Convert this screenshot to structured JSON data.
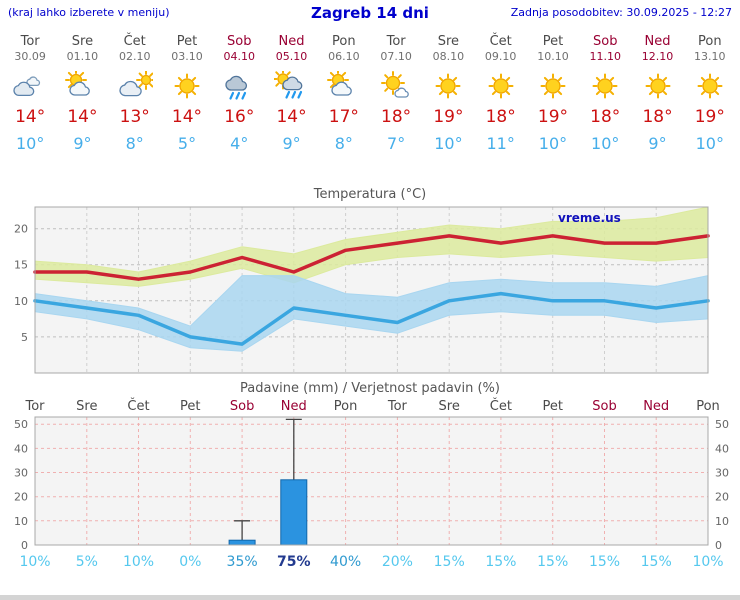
{
  "header": {
    "left_note": "(kraj lahko izberete v meniju)",
    "title": "Zagreb 14 dni",
    "updated": "Zadnja posodobitev: 30.09.2025 - 12:27"
  },
  "forecast_days": [
    {
      "name": "Tor",
      "date": "30.09",
      "weekend": false,
      "icon": "cloudy",
      "high": "14°",
      "low": "10°"
    },
    {
      "name": "Sre",
      "date": "01.10",
      "weekend": false,
      "icon": "partly-cloudy",
      "high": "14°",
      "low": "9°"
    },
    {
      "name": "Čet",
      "date": "02.10",
      "weekend": false,
      "icon": "mostly-cloudy",
      "high": "13°",
      "low": "8°"
    },
    {
      "name": "Pet",
      "date": "03.10",
      "weekend": false,
      "icon": "sunny",
      "high": "14°",
      "low": "5°"
    },
    {
      "name": "Sob",
      "date": "04.10",
      "weekend": true,
      "icon": "rain",
      "high": "16°",
      "low": "4°"
    },
    {
      "name": "Ned",
      "date": "05.10",
      "weekend": true,
      "icon": "sun-rain",
      "high": "14°",
      "low": "9°"
    },
    {
      "name": "Pon",
      "date": "06.10",
      "weekend": false,
      "icon": "partly-cloudy",
      "high": "17°",
      "low": "8°"
    },
    {
      "name": "Tor",
      "date": "07.10",
      "weekend": false,
      "icon": "mostly-sunny",
      "high": "18°",
      "low": "7°"
    },
    {
      "name": "Sre",
      "date": "08.10",
      "weekend": false,
      "icon": "sunny",
      "high": "19°",
      "low": "10°"
    },
    {
      "name": "Čet",
      "date": "09.10",
      "weekend": false,
      "icon": "sunny",
      "high": "18°",
      "low": "11°"
    },
    {
      "name": "Pet",
      "date": "10.10",
      "weekend": false,
      "icon": "sunny",
      "high": "19°",
      "low": "10°"
    },
    {
      "name": "Sob",
      "date": "11.10",
      "weekend": true,
      "icon": "sunny",
      "high": "18°",
      "low": "10°"
    },
    {
      "name": "Ned",
      "date": "12.10",
      "weekend": true,
      "icon": "sunny",
      "high": "18°",
      "low": "9°"
    },
    {
      "name": "Pon",
      "date": "13.10",
      "weekend": false,
      "icon": "sunny",
      "high": "19°",
      "low": "10°"
    }
  ],
  "chart_data": [
    {
      "type": "line",
      "title": "Temperatura (°C)",
      "categories": [
        "Tor",
        "Sre",
        "Čet",
        "Pet",
        "Sob",
        "Ned",
        "Pon",
        "Tor",
        "Sre",
        "Čet",
        "Pet",
        "Sob",
        "Ned",
        "Pon"
      ],
      "ylim": [
        0,
        23
      ],
      "yticks": [
        5,
        10,
        15,
        20
      ],
      "grid": true,
      "legend": "none",
      "watermark": "vreme.us",
      "series": [
        {
          "name": "max",
          "color": "#cc2233",
          "band_color": "#dcea9e",
          "values": [
            14,
            14,
            13,
            14,
            16,
            14,
            17,
            18,
            19,
            18,
            19,
            18,
            18,
            19
          ],
          "band_upper": [
            15.5,
            15,
            14,
            15.5,
            17.5,
            16.5,
            18.5,
            19.5,
            20.5,
            20,
            21,
            21,
            21.5,
            23
          ],
          "band_lower": [
            13,
            12.5,
            12,
            13,
            14.5,
            12.5,
            15,
            16,
            16.5,
            16,
            16.5,
            16,
            15.5,
            16
          ]
        },
        {
          "name": "min",
          "color": "#3aa6e0",
          "band_color": "#a9d6f0",
          "values": [
            10,
            9,
            8,
            5,
            4,
            9,
            8,
            7,
            10,
            11,
            10,
            10,
            9,
            10
          ],
          "band_upper": [
            11,
            10,
            9,
            6.5,
            13.5,
            13.5,
            11,
            10.5,
            12.5,
            13,
            12.5,
            12.5,
            12,
            13.5
          ],
          "band_lower": [
            8.5,
            7.5,
            6,
            3.5,
            3,
            7.5,
            6.5,
            5.5,
            8,
            8.5,
            8,
            8,
            7,
            7.5
          ]
        }
      ]
    },
    {
      "type": "bar",
      "title": "Padavine (mm) / Verjetnost padavin (%)",
      "categories": [
        "Tor",
        "Sre",
        "Čet",
        "Pet",
        "Sob",
        "Ned",
        "Pon",
        "Tor",
        "Sre",
        "Čet",
        "Pet",
        "Sob",
        "Ned",
        "Pon"
      ],
      "weekend": [
        false,
        false,
        false,
        false,
        true,
        true,
        false,
        false,
        false,
        false,
        false,
        true,
        true,
        false
      ],
      "ylim": [
        0,
        53
      ],
      "yticks": [
        0,
        10,
        20,
        30,
        40,
        50
      ],
      "values": [
        0,
        0,
        0,
        0,
        2,
        27,
        0,
        0,
        0,
        0,
        0,
        0,
        0,
        0
      ],
      "whiskers": [
        0,
        0,
        0,
        0,
        10,
        52,
        0,
        0,
        0,
        0,
        0,
        0,
        0,
        0
      ],
      "probabilities": [
        {
          "label": "10%",
          "level": 0
        },
        {
          "label": "5%",
          "level": 0
        },
        {
          "label": "10%",
          "level": 0
        },
        {
          "label": "0%",
          "level": 0
        },
        {
          "label": "35%",
          "level": 1
        },
        {
          "label": "75%",
          "level": 2
        },
        {
          "label": "40%",
          "level": 1
        },
        {
          "label": "20%",
          "level": 0
        },
        {
          "label": "15%",
          "level": 0
        },
        {
          "label": "15%",
          "level": 0
        },
        {
          "label": "15%",
          "level": 0
        },
        {
          "label": "15%",
          "level": 0
        },
        {
          "label": "15%",
          "level": 0
        },
        {
          "label": "10%",
          "level": 0
        }
      ]
    }
  ],
  "colors": {
    "accent_blue": "#0000cc",
    "weekend_red": "#990033",
    "day_gray": "#4a4a4a",
    "high_temp": "#cc1111",
    "low_temp": "#46aeea",
    "chart_bg": "#f4f4f4",
    "temp_grid": "#bfbfbf",
    "precip_grid": "#f0b0b0",
    "bar_fill": "#2b93e0",
    "bar_stroke": "#1166aa",
    "watermark_blue": "#1111bb",
    "prob_colors": [
      "#55c8ee",
      "#2f9ad0",
      "#223a8f"
    ]
  }
}
